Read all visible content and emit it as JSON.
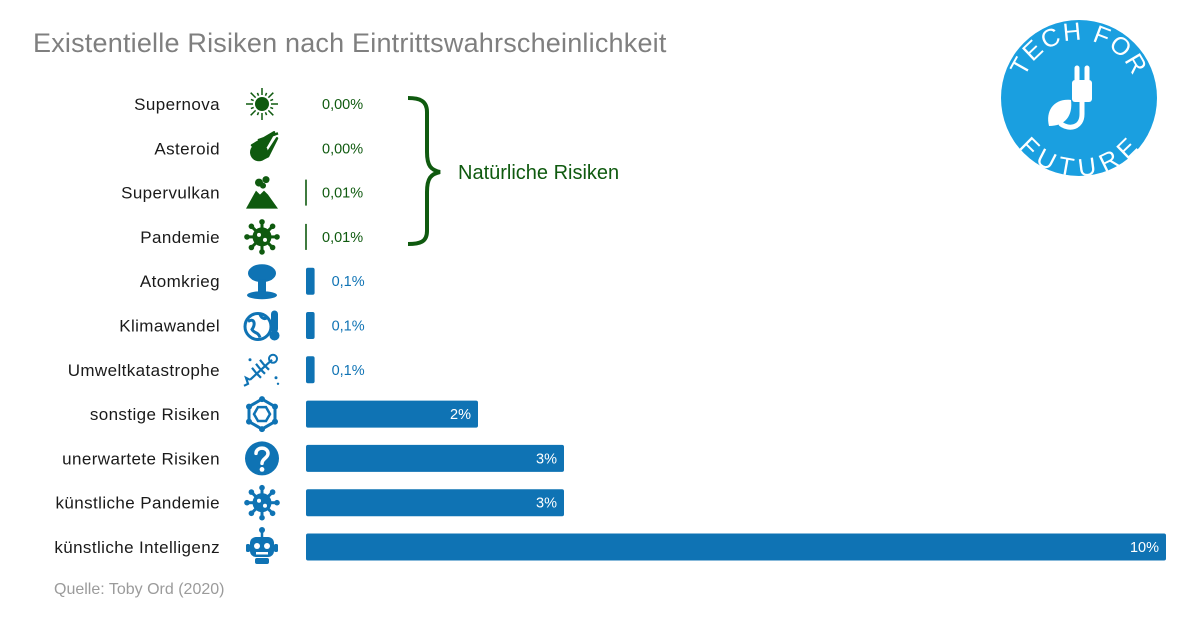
{
  "title": "Existentielle Risiken nach Eintrittswahrscheinlichkeit",
  "source": "Quelle: Toby Ord (2020)",
  "group_label": "Natürliche Risiken",
  "logo": {
    "top_text": "TECH FOR",
    "bottom_text": "FUTURE",
    "icon": "plug-leaf-icon"
  },
  "colors": {
    "natural": "#0f5a0f",
    "other": "#0f73b4",
    "title": "#7f7f7f",
    "source": "#9b9b9b",
    "logo": "#1a9fe0"
  },
  "chart_data": {
    "type": "bar",
    "orientation": "horizontal",
    "unit": "%",
    "categories": [
      "Supernova",
      "Asteroid",
      "Supervulkan",
      "Pandemie",
      "Atomkrieg",
      "Klimawandel",
      "Umweltkatastrophe",
      "sonstige Risiken",
      "unerwartete Risiken",
      "künstliche Pandemie",
      "künstliche Intelligenz"
    ],
    "values": [
      0.0,
      0.0,
      0.01,
      0.01,
      0.1,
      0.1,
      0.1,
      2,
      3,
      3,
      10
    ],
    "value_labels": [
      "0,00%",
      "0,00%",
      "0,01%",
      "0,01%",
      "0,1%",
      "0,1%",
      "0,1%",
      "2%",
      "3%",
      "3%",
      "10%"
    ],
    "groups": [
      "natural",
      "natural",
      "natural",
      "natural",
      "other",
      "other",
      "other",
      "other",
      "other",
      "other",
      "other"
    ],
    "icons": [
      "sun-icon",
      "comet-icon",
      "volcano-icon",
      "virus-icon",
      "mushroom-cloud-icon",
      "earth-thermometer-icon",
      "dead-fish-icon",
      "hexagon-network-icon",
      "question-icon",
      "virus-icon",
      "robot-icon"
    ],
    "xlim": [
      0,
      10
    ],
    "grid": false,
    "legend": "none"
  }
}
